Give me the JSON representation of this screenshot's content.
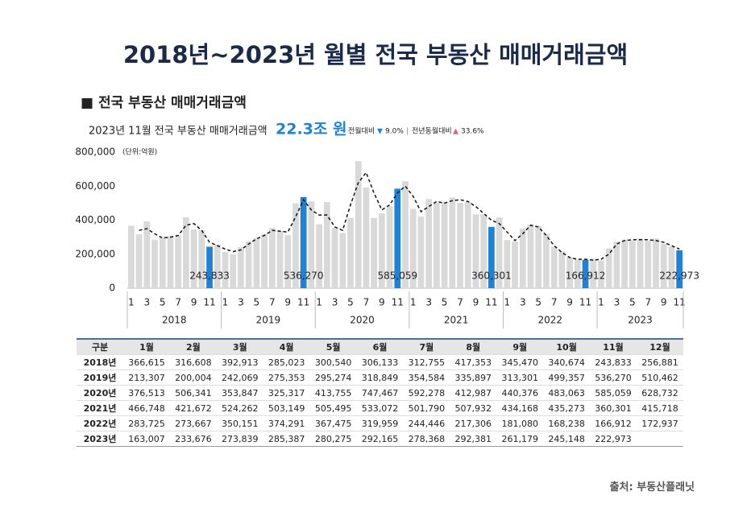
{
  "chart_data": {
    "type": "bar",
    "title": "2018년~2023년 월별 전국 부동산 매매거래금액",
    "section": "■ 전국 부동산 매매거래금액",
    "summary": {
      "label": "2023년 11월 전국 부동산 매매거래금액",
      "amount": "22.3조 원",
      "mom_label": "전월대비",
      "mom_arrow": "▼",
      "mom_value": "9.0%",
      "sep": "|",
      "yoy_label": "전년동월대비",
      "yoy_arrow": "▲",
      "yoy_value": "33.6%"
    },
    "y_unit": "(단위:억원)",
    "ylim": [
      0,
      800000
    ],
    "yticks": [
      0,
      {
        "value": 200000,
        "label": "200,000"
      },
      {
        "value": 400000,
        "label": "400,000"
      },
      {
        "value": 600000,
        "label": "600,000"
      },
      {
        "value": 800000,
        "label": "800,000"
      }
    ],
    "groups": [
      "2018",
      "2019",
      "2020",
      "2021",
      "2022",
      "2023"
    ],
    "categories": [
      "1",
      null,
      "3",
      null,
      "5",
      null,
      "7",
      null,
      "9",
      null,
      "11",
      null,
      "1",
      null,
      "3",
      null,
      "5",
      null,
      "7",
      null,
      "9",
      null,
      "11",
      null,
      "1",
      null,
      "3",
      null,
      "5",
      null,
      "7",
      null,
      "9",
      null,
      "11",
      null,
      "1",
      null,
      "3",
      null,
      "5",
      null,
      "7",
      null,
      "9",
      null,
      "11",
      null,
      "1",
      null,
      "3",
      null,
      "5",
      null,
      "7",
      null,
      "9",
      null,
      "11",
      null,
      "1",
      null,
      "3",
      null,
      "5",
      null,
      "7",
      null,
      "9",
      null,
      "11"
    ],
    "series": [
      {
        "color": "#d9d9d9",
        "values": [
          366615,
          316608,
          392913,
          285023,
          300540,
          306133,
          312755,
          417353,
          345470,
          340674,
          null,
          256881,
          213307,
          200004,
          242069,
          275353,
          295274,
          318849,
          354584,
          335897,
          313301,
          499357,
          null,
          510462,
          376513,
          506341,
          353847,
          325317,
          413755,
          747467,
          592278,
          412987,
          440376,
          483063,
          null,
          628732,
          466748,
          421672,
          524262,
          503149,
          505495,
          533072,
          501790,
          507932,
          434168,
          435273,
          null,
          415718,
          283725,
          273667,
          350151,
          374291,
          367475,
          319959,
          244446,
          217306,
          181080,
          168238,
          null,
          172937,
          163007,
          233676,
          273839,
          285387,
          280275,
          292165,
          278368,
          292381,
          261179,
          245148,
          null
        ]
      },
      {
        "color": "#1f82d8",
        "values": [
          null,
          null,
          null,
          null,
          null,
          null,
          null,
          null,
          null,
          null,
          243833,
          null,
          null,
          null,
          null,
          null,
          null,
          null,
          null,
          null,
          null,
          null,
          536270,
          null,
          null,
          null,
          null,
          null,
          null,
          null,
          null,
          null,
          null,
          null,
          585059,
          null,
          null,
          null,
          null,
          null,
          null,
          null,
          null,
          null,
          null,
          null,
          360301,
          null,
          null,
          null,
          null,
          null,
          null,
          null,
          null,
          null,
          null,
          null,
          166912,
          null,
          null,
          null,
          null,
          null,
          null,
          null,
          null,
          null,
          null,
          null,
          222973
        ],
        "value_labels": [
          null,
          null,
          null,
          null,
          null,
          null,
          null,
          null,
          null,
          null,
          "243,833",
          null,
          null,
          null,
          null,
          null,
          null,
          null,
          null,
          null,
          null,
          null,
          "536,270",
          null,
          null,
          null,
          null,
          null,
          null,
          null,
          null,
          null,
          null,
          null,
          "585,059",
          null,
          null,
          null,
          null,
          null,
          null,
          null,
          null,
          null,
          null,
          null,
          "360,301",
          null,
          null,
          null,
          null,
          null,
          null,
          null,
          null,
          null,
          null,
          null,
          "166,912",
          null,
          null,
          null,
          null,
          null,
          null,
          null,
          null,
          null,
          null,
          null,
          "222,973"
        ]
      },
      {
        "type": "line",
        "color": "#111111",
        "dashed": true,
        "values": [
          null,
          340000,
          350000,
          320000,
          295000,
          300000,
          310000,
          370000,
          380000,
          340000,
          270000,
          250000,
          230000,
          215000,
          225000,
          260000,
          290000,
          310000,
          340000,
          335000,
          330000,
          420000,
          520000,
          460000,
          430000,
          430000,
          360000,
          340000,
          490000,
          620000,
          680000,
          560000,
          460000,
          490000,
          560000,
          600000,
          540000,
          450000,
          480000,
          510000,
          500000,
          515000,
          520000,
          510000,
          480000,
          440000,
          400000,
          380000,
          330000,
          280000,
          320000,
          370000,
          360000,
          310000,
          250000,
          210000,
          180000,
          170000,
          170000,
          165000,
          170000,
          200000,
          260000,
          280000,
          285000,
          285000,
          285000,
          280000,
          270000,
          250000,
          230000
        ]
      }
    ]
  },
  "table": {
    "header": [
      "구분",
      "1월",
      "2월",
      "3월",
      "4월",
      "5월",
      "6월",
      "7월",
      "8월",
      "9월",
      "10월",
      "11월",
      "12월"
    ],
    "rows": [
      [
        "2018년",
        "366,615",
        "316,608",
        "392,913",
        "285,023",
        "300,540",
        "306,133",
        "312,755",
        "417,353",
        "345,470",
        "340,674",
        "243,833",
        "256,881"
      ],
      [
        "2019년",
        "213,307",
        "200,004",
        "242,069",
        "275,353",
        "295,274",
        "318,849",
        "354,584",
        "335,897",
        "313,301",
        "499,357",
        "536,270",
        "510,462"
      ],
      [
        "2020년",
        "376,513",
        "506,341",
        "353,847",
        "325,317",
        "413,755",
        "747,467",
        "592,278",
        "412,987",
        "440,376",
        "483,063",
        "585,059",
        "628,732"
      ],
      [
        "2021년",
        "466,748",
        "421,672",
        "524,262",
        "503,149",
        "505,495",
        "533,072",
        "501,790",
        "507,932",
        "434,168",
        "435,273",
        "360,301",
        "415,718"
      ],
      [
        "2022년",
        "283,725",
        "273,667",
        "350,151",
        "374,291",
        "367,475",
        "319,959",
        "244,446",
        "217,306",
        "181,080",
        "168,238",
        "166,912",
        "172,937"
      ],
      [
        "2023년",
        "163,007",
        "233,676",
        "273,839",
        "285,387",
        "280,275",
        "292,165",
        "278,368",
        "292,381",
        "261,179",
        "245,148",
        "222,973"
      ]
    ]
  },
  "source": "출처: 부동산플래닛"
}
